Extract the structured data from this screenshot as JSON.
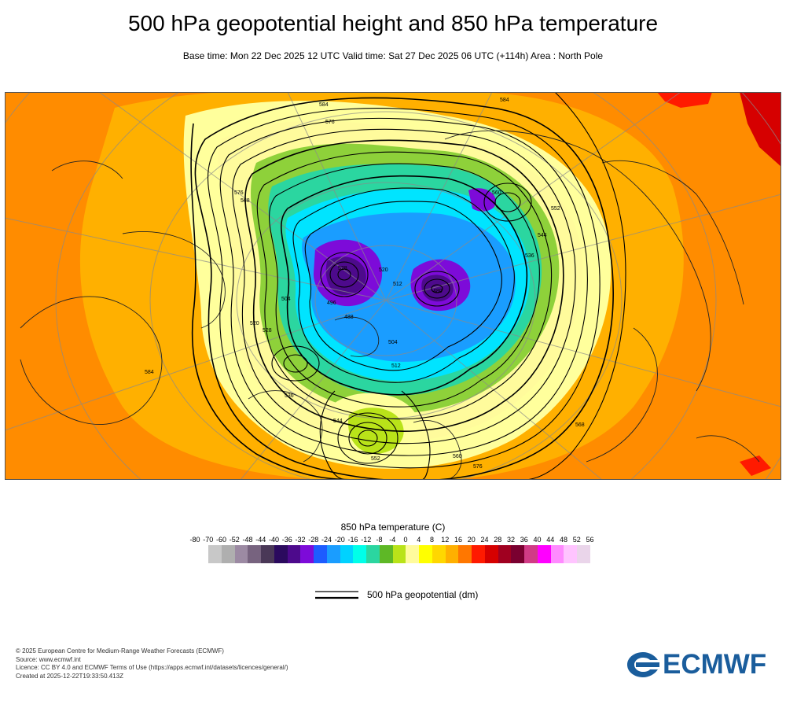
{
  "title": "500 hPa geopotential height and 850 hPa temperature",
  "subtitle": "Base time: Mon 22 Dec 2025 12 UTC Valid time: Sat 27 Dec 2025 06 UTC (+114h) Area : North Pole",
  "legend": {
    "temperature_title": "850 hPa temperature (C)",
    "ticks": [
      "-80",
      "-70",
      "-60",
      "-52",
      "-48",
      "-44",
      "-40",
      "-36",
      "-32",
      "-28",
      "-24",
      "-20",
      "-16",
      "-12",
      "-8",
      "-4",
      "0",
      "4",
      "8",
      "12",
      "16",
      "20",
      "24",
      "28",
      "32",
      "36",
      "40",
      "44",
      "48",
      "52",
      "56"
    ],
    "colors": [
      "#e1e1e1",
      "#c8c8c8",
      "#afafaf",
      "#9c8aa3",
      "#77637f",
      "#4a3857",
      "#2b0a5e",
      "#4d0a8c",
      "#7d0bd9",
      "#1d5cff",
      "#1a9dff",
      "#00d2ff",
      "#00ffe9",
      "#2bd6a0",
      "#5eb826",
      "#b9e319",
      "#fffb9c",
      "#ffff00",
      "#ffd700",
      "#ffb000",
      "#ff7700",
      "#ff1a00",
      "#d60000",
      "#a00020",
      "#7a0030",
      "#d13b86",
      "#ff00ff",
      "#ff8aff",
      "#ffc4ff",
      "#ead5ea",
      "#e6e6e6"
    ],
    "geopotential_label": "500 hPa geopotential (dm)"
  },
  "map": {
    "contour_labels": [
      "584",
      "584",
      "576",
      "576",
      "568",
      "560",
      "552",
      "544",
      "536",
      "528",
      "520",
      "512",
      "504",
      "496",
      "488",
      "480",
      "504",
      "512",
      "520",
      "528",
      "536",
      "544",
      "552",
      "560",
      "568",
      "576",
      "584"
    ]
  },
  "footer": {
    "lines": [
      "© 2025 European Centre for Medium-Range Weather Forecasts (ECMWF)",
      "Source: www.ecmwf.int",
      "Licence: CC BY 4.0 and ECMWF Terms of Use (https://apps.ecmwf.int/datasets/licences/general/)",
      "Created at 2025-12-22T19:33:50.413Z"
    ]
  },
  "logo_text": "ECMWF",
  "colors": {
    "warm_field": "#ff8c00",
    "brand": "#1a5d9c"
  }
}
